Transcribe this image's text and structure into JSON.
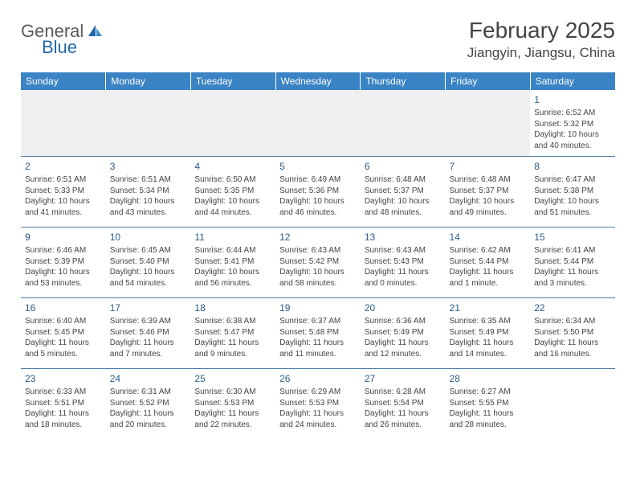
{
  "logo": {
    "general": "General",
    "blue": "Blue"
  },
  "title": "February 2025",
  "location": "Jiangyin, Jiangsu, China",
  "colors": {
    "header_bg": "#3a83c4",
    "header_text": "#ffffff",
    "day_num": "#2b5c8a",
    "row_divider": "#4a7aa8",
    "empty_row_bg": "#f0f0f0",
    "body_text": "#444444",
    "logo_general": "#5a5a5a",
    "logo_blue": "#2168a8"
  },
  "weekdays": [
    "Sunday",
    "Monday",
    "Tuesday",
    "Wednesday",
    "Thursday",
    "Friday",
    "Saturday"
  ],
  "weeks": [
    [
      null,
      null,
      null,
      null,
      null,
      null,
      {
        "n": "1",
        "sunrise": "Sunrise: 6:52 AM",
        "sunset": "Sunset: 5:32 PM",
        "daylight": "Daylight: 10 hours and 40 minutes."
      }
    ],
    [
      {
        "n": "2",
        "sunrise": "Sunrise: 6:51 AM",
        "sunset": "Sunset: 5:33 PM",
        "daylight": "Daylight: 10 hours and 41 minutes."
      },
      {
        "n": "3",
        "sunrise": "Sunrise: 6:51 AM",
        "sunset": "Sunset: 5:34 PM",
        "daylight": "Daylight: 10 hours and 43 minutes."
      },
      {
        "n": "4",
        "sunrise": "Sunrise: 6:50 AM",
        "sunset": "Sunset: 5:35 PM",
        "daylight": "Daylight: 10 hours and 44 minutes."
      },
      {
        "n": "5",
        "sunrise": "Sunrise: 6:49 AM",
        "sunset": "Sunset: 5:36 PM",
        "daylight": "Daylight: 10 hours and 46 minutes."
      },
      {
        "n": "6",
        "sunrise": "Sunrise: 6:48 AM",
        "sunset": "Sunset: 5:37 PM",
        "daylight": "Daylight: 10 hours and 48 minutes."
      },
      {
        "n": "7",
        "sunrise": "Sunrise: 6:48 AM",
        "sunset": "Sunset: 5:37 PM",
        "daylight": "Daylight: 10 hours and 49 minutes."
      },
      {
        "n": "8",
        "sunrise": "Sunrise: 6:47 AM",
        "sunset": "Sunset: 5:38 PM",
        "daylight": "Daylight: 10 hours and 51 minutes."
      }
    ],
    [
      {
        "n": "9",
        "sunrise": "Sunrise: 6:46 AM",
        "sunset": "Sunset: 5:39 PM",
        "daylight": "Daylight: 10 hours and 53 minutes."
      },
      {
        "n": "10",
        "sunrise": "Sunrise: 6:45 AM",
        "sunset": "Sunset: 5:40 PM",
        "daylight": "Daylight: 10 hours and 54 minutes."
      },
      {
        "n": "11",
        "sunrise": "Sunrise: 6:44 AM",
        "sunset": "Sunset: 5:41 PM",
        "daylight": "Daylight: 10 hours and 56 minutes."
      },
      {
        "n": "12",
        "sunrise": "Sunrise: 6:43 AM",
        "sunset": "Sunset: 5:42 PM",
        "daylight": "Daylight: 10 hours and 58 minutes."
      },
      {
        "n": "13",
        "sunrise": "Sunrise: 6:43 AM",
        "sunset": "Sunset: 5:43 PM",
        "daylight": "Daylight: 11 hours and 0 minutes."
      },
      {
        "n": "14",
        "sunrise": "Sunrise: 6:42 AM",
        "sunset": "Sunset: 5:44 PM",
        "daylight": "Daylight: 11 hours and 1 minute."
      },
      {
        "n": "15",
        "sunrise": "Sunrise: 6:41 AM",
        "sunset": "Sunset: 5:44 PM",
        "daylight": "Daylight: 11 hours and 3 minutes."
      }
    ],
    [
      {
        "n": "16",
        "sunrise": "Sunrise: 6:40 AM",
        "sunset": "Sunset: 5:45 PM",
        "daylight": "Daylight: 11 hours and 5 minutes."
      },
      {
        "n": "17",
        "sunrise": "Sunrise: 6:39 AM",
        "sunset": "Sunset: 5:46 PM",
        "daylight": "Daylight: 11 hours and 7 minutes."
      },
      {
        "n": "18",
        "sunrise": "Sunrise: 6:38 AM",
        "sunset": "Sunset: 5:47 PM",
        "daylight": "Daylight: 11 hours and 9 minutes."
      },
      {
        "n": "19",
        "sunrise": "Sunrise: 6:37 AM",
        "sunset": "Sunset: 5:48 PM",
        "daylight": "Daylight: 11 hours and 11 minutes."
      },
      {
        "n": "20",
        "sunrise": "Sunrise: 6:36 AM",
        "sunset": "Sunset: 5:49 PM",
        "daylight": "Daylight: 11 hours and 12 minutes."
      },
      {
        "n": "21",
        "sunrise": "Sunrise: 6:35 AM",
        "sunset": "Sunset: 5:49 PM",
        "daylight": "Daylight: 11 hours and 14 minutes."
      },
      {
        "n": "22",
        "sunrise": "Sunrise: 6:34 AM",
        "sunset": "Sunset: 5:50 PM",
        "daylight": "Daylight: 11 hours and 16 minutes."
      }
    ],
    [
      {
        "n": "23",
        "sunrise": "Sunrise: 6:33 AM",
        "sunset": "Sunset: 5:51 PM",
        "daylight": "Daylight: 11 hours and 18 minutes."
      },
      {
        "n": "24",
        "sunrise": "Sunrise: 6:31 AM",
        "sunset": "Sunset: 5:52 PM",
        "daylight": "Daylight: 11 hours and 20 minutes."
      },
      {
        "n": "25",
        "sunrise": "Sunrise: 6:30 AM",
        "sunset": "Sunset: 5:53 PM",
        "daylight": "Daylight: 11 hours and 22 minutes."
      },
      {
        "n": "26",
        "sunrise": "Sunrise: 6:29 AM",
        "sunset": "Sunset: 5:53 PM",
        "daylight": "Daylight: 11 hours and 24 minutes."
      },
      {
        "n": "27",
        "sunrise": "Sunrise: 6:28 AM",
        "sunset": "Sunset: 5:54 PM",
        "daylight": "Daylight: 11 hours and 26 minutes."
      },
      {
        "n": "28",
        "sunrise": "Sunrise: 6:27 AM",
        "sunset": "Sunset: 5:55 PM",
        "daylight": "Daylight: 11 hours and 28 minutes."
      },
      null
    ]
  ]
}
